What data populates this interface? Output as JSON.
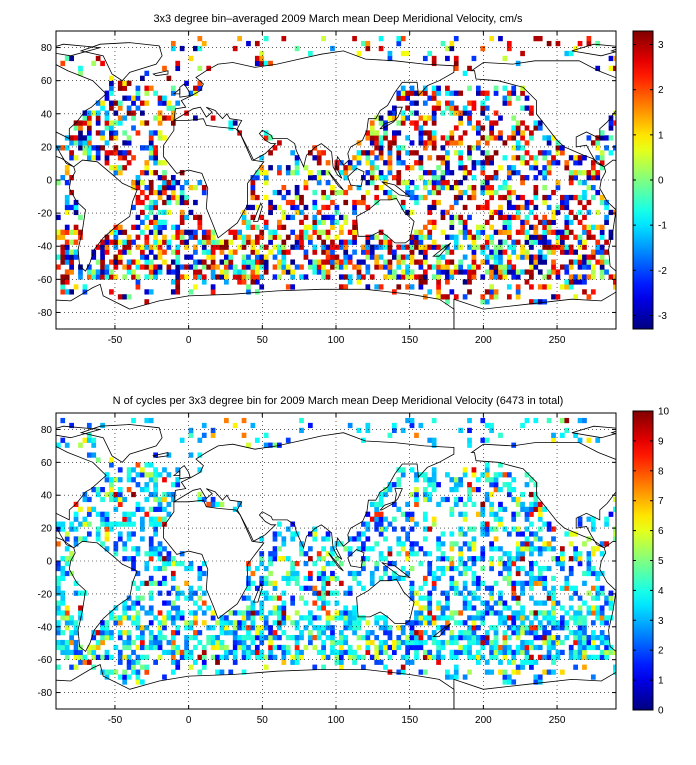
{
  "chart_data": [
    {
      "type": "heatmap",
      "title": "3x3 degree bin–averaged 2009 March mean Deep Meridional Velocity, cm/s",
      "xlabel": "",
      "ylabel": "",
      "x_ticks": [
        "-50",
        "0",
        "50",
        "100",
        "150",
        "200",
        "250"
      ],
      "y_ticks": [
        "80",
        "60",
        "40",
        "20",
        "0",
        "-20",
        "-40",
        "-60",
        "-80"
      ],
      "xlim": [
        -90,
        290
      ],
      "ylim": [
        -90,
        90
      ],
      "grid": true,
      "grid_style": "dotted",
      "colormap": "jet",
      "colorbar": {
        "ticks": [
          "3",
          "2",
          "1",
          "0",
          "-1",
          "-2",
          "-3"
        ],
        "range": [
          -3.3,
          3.3
        ]
      },
      "bin_size_deg": 3
    },
    {
      "type": "heatmap",
      "title": "N of cycles per 3x3 degree bin for 2009 March mean Deep Meridional Velocity (6473 in total)",
      "xlabel": "",
      "ylabel": "",
      "x_ticks": [
        "-50",
        "0",
        "50",
        "100",
        "150",
        "200",
        "250"
      ],
      "y_ticks": [
        "80",
        "60",
        "40",
        "20",
        "0",
        "-20",
        "-40",
        "-60",
        "-80"
      ],
      "xlim": [
        -90,
        290
      ],
      "ylim": [
        -90,
        90
      ],
      "grid": true,
      "grid_style": "dotted",
      "colormap": "jet",
      "colorbar": {
        "ticks": [
          "10",
          "9",
          "8",
          "7",
          "6",
          "5",
          "4",
          "3",
          "2",
          "1",
          "0"
        ],
        "range": [
          0,
          10
        ]
      },
      "bin_size_deg": 3
    }
  ]
}
